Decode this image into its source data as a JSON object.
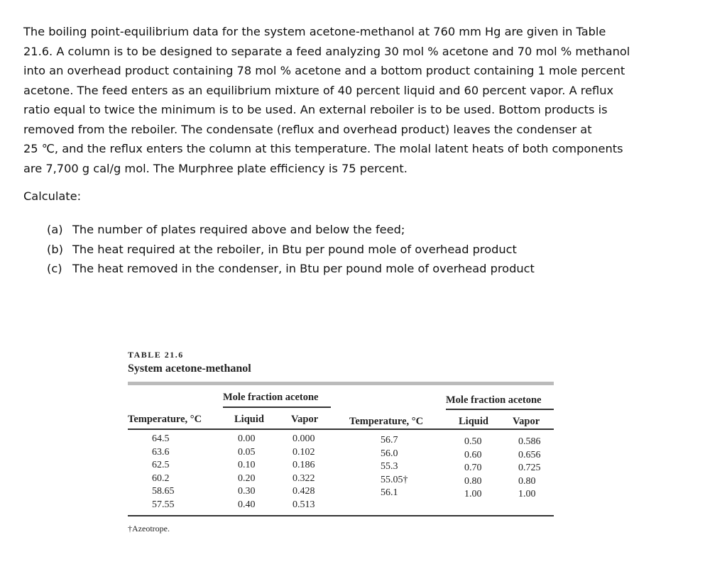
{
  "problem": {
    "lines": [
      "The boiling point-equilibrium data for the system acetone-methanol at 760 mm Hg are given in Table",
      "21.6. A column is to be designed to separate a feed analyzing 30 mol % acetone and 70 mol % methanol",
      "into an overhead product containing 78 mol % acetone and a bottom product containing 1 mole percent",
      "acetone. The feed enters as an equilibrium mixture of 40 percent liquid and 60 percent vapor. A reflux",
      "ratio equal to twice the minimum is to be used. An external reboiler is to be used. Bottom products is",
      "removed from the reboiler. The condensate (reflux and overhead product) leaves the condenser at",
      "25 ℃, and the reflux enters the column at this temperature. The molal latent heats of both components",
      "are 7,700 g cal/g mol. The Murphree plate efficiency is 75 percent."
    ],
    "calculate": "Calculate:",
    "parts": [
      {
        "label": "(a)",
        "text": "The number of plates required above and below the feed;"
      },
      {
        "label": "(b)",
        "text": "The heat required at the reboiler, in Btu per pound mole of overhead product"
      },
      {
        "label": "(c)",
        "text": "The heat removed in the condenser, in Btu per pound mole of overhead product"
      }
    ]
  },
  "table": {
    "number": "TABLE 21.6",
    "title": "System acetone-methanol",
    "group_header": "Mole fraction acetone",
    "headers": {
      "temperature": "Temperature, °C",
      "liquid": "Liquid",
      "vapor": "Vapor"
    },
    "left": {
      "temperature": [
        "64.5",
        "63.6",
        "62.5",
        "60.2",
        "58.65",
        "57.55"
      ],
      "liquid": [
        "0.00",
        "0.05",
        "0.10",
        "0.20",
        "0.30",
        "0.40"
      ],
      "vapor": [
        "0.000",
        "0.102",
        "0.186",
        "0.322",
        "0.428",
        "0.513"
      ]
    },
    "right": {
      "temperature": [
        "56.7",
        "56.0",
        "55.3",
        "55.05†",
        "56.1"
      ],
      "liquid": [
        "0.50",
        "0.60",
        "0.70",
        "0.80",
        "1.00"
      ],
      "vapor": [
        "0.586",
        "0.656",
        "0.725",
        "0.80",
        "1.00"
      ]
    },
    "footnote": "†Azeotrope."
  }
}
